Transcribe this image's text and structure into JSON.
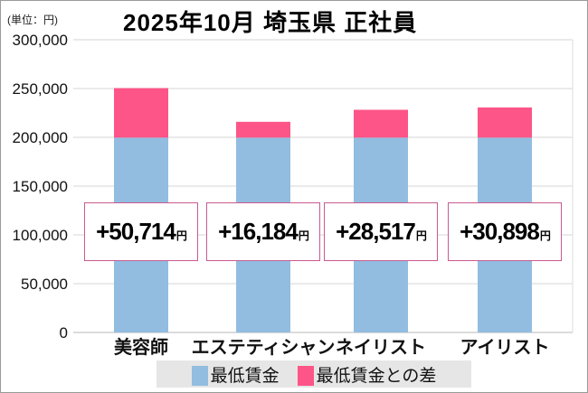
{
  "chart_data": {
    "type": "bar",
    "stacked": true,
    "title": "2025年10月 埼玉県 正社員",
    "unit_label": "(単位：円)",
    "categories": [
      "美容師",
      "エステティシャン",
      "ネイリスト",
      "アイリスト"
    ],
    "series": [
      {
        "name": "最低賃金",
        "color": "#92bde0",
        "values": [
          199700,
          199700,
          199700,
          199700
        ]
      },
      {
        "name": "最低賃金との差",
        "color": "#fd5588",
        "values": [
          50714,
          16184,
          28517,
          30898
        ]
      }
    ],
    "data_labels": [
      "+50,714",
      "+16,184",
      "+28,517",
      "+30,898"
    ],
    "data_label_unit": "円",
    "ylim": [
      0,
      300000
    ],
    "yticks": [
      "0",
      "50,000",
      "100,000",
      "150,000",
      "200,000",
      "250,000",
      "300,000"
    ],
    "grid": true,
    "legend": "bottom"
  }
}
